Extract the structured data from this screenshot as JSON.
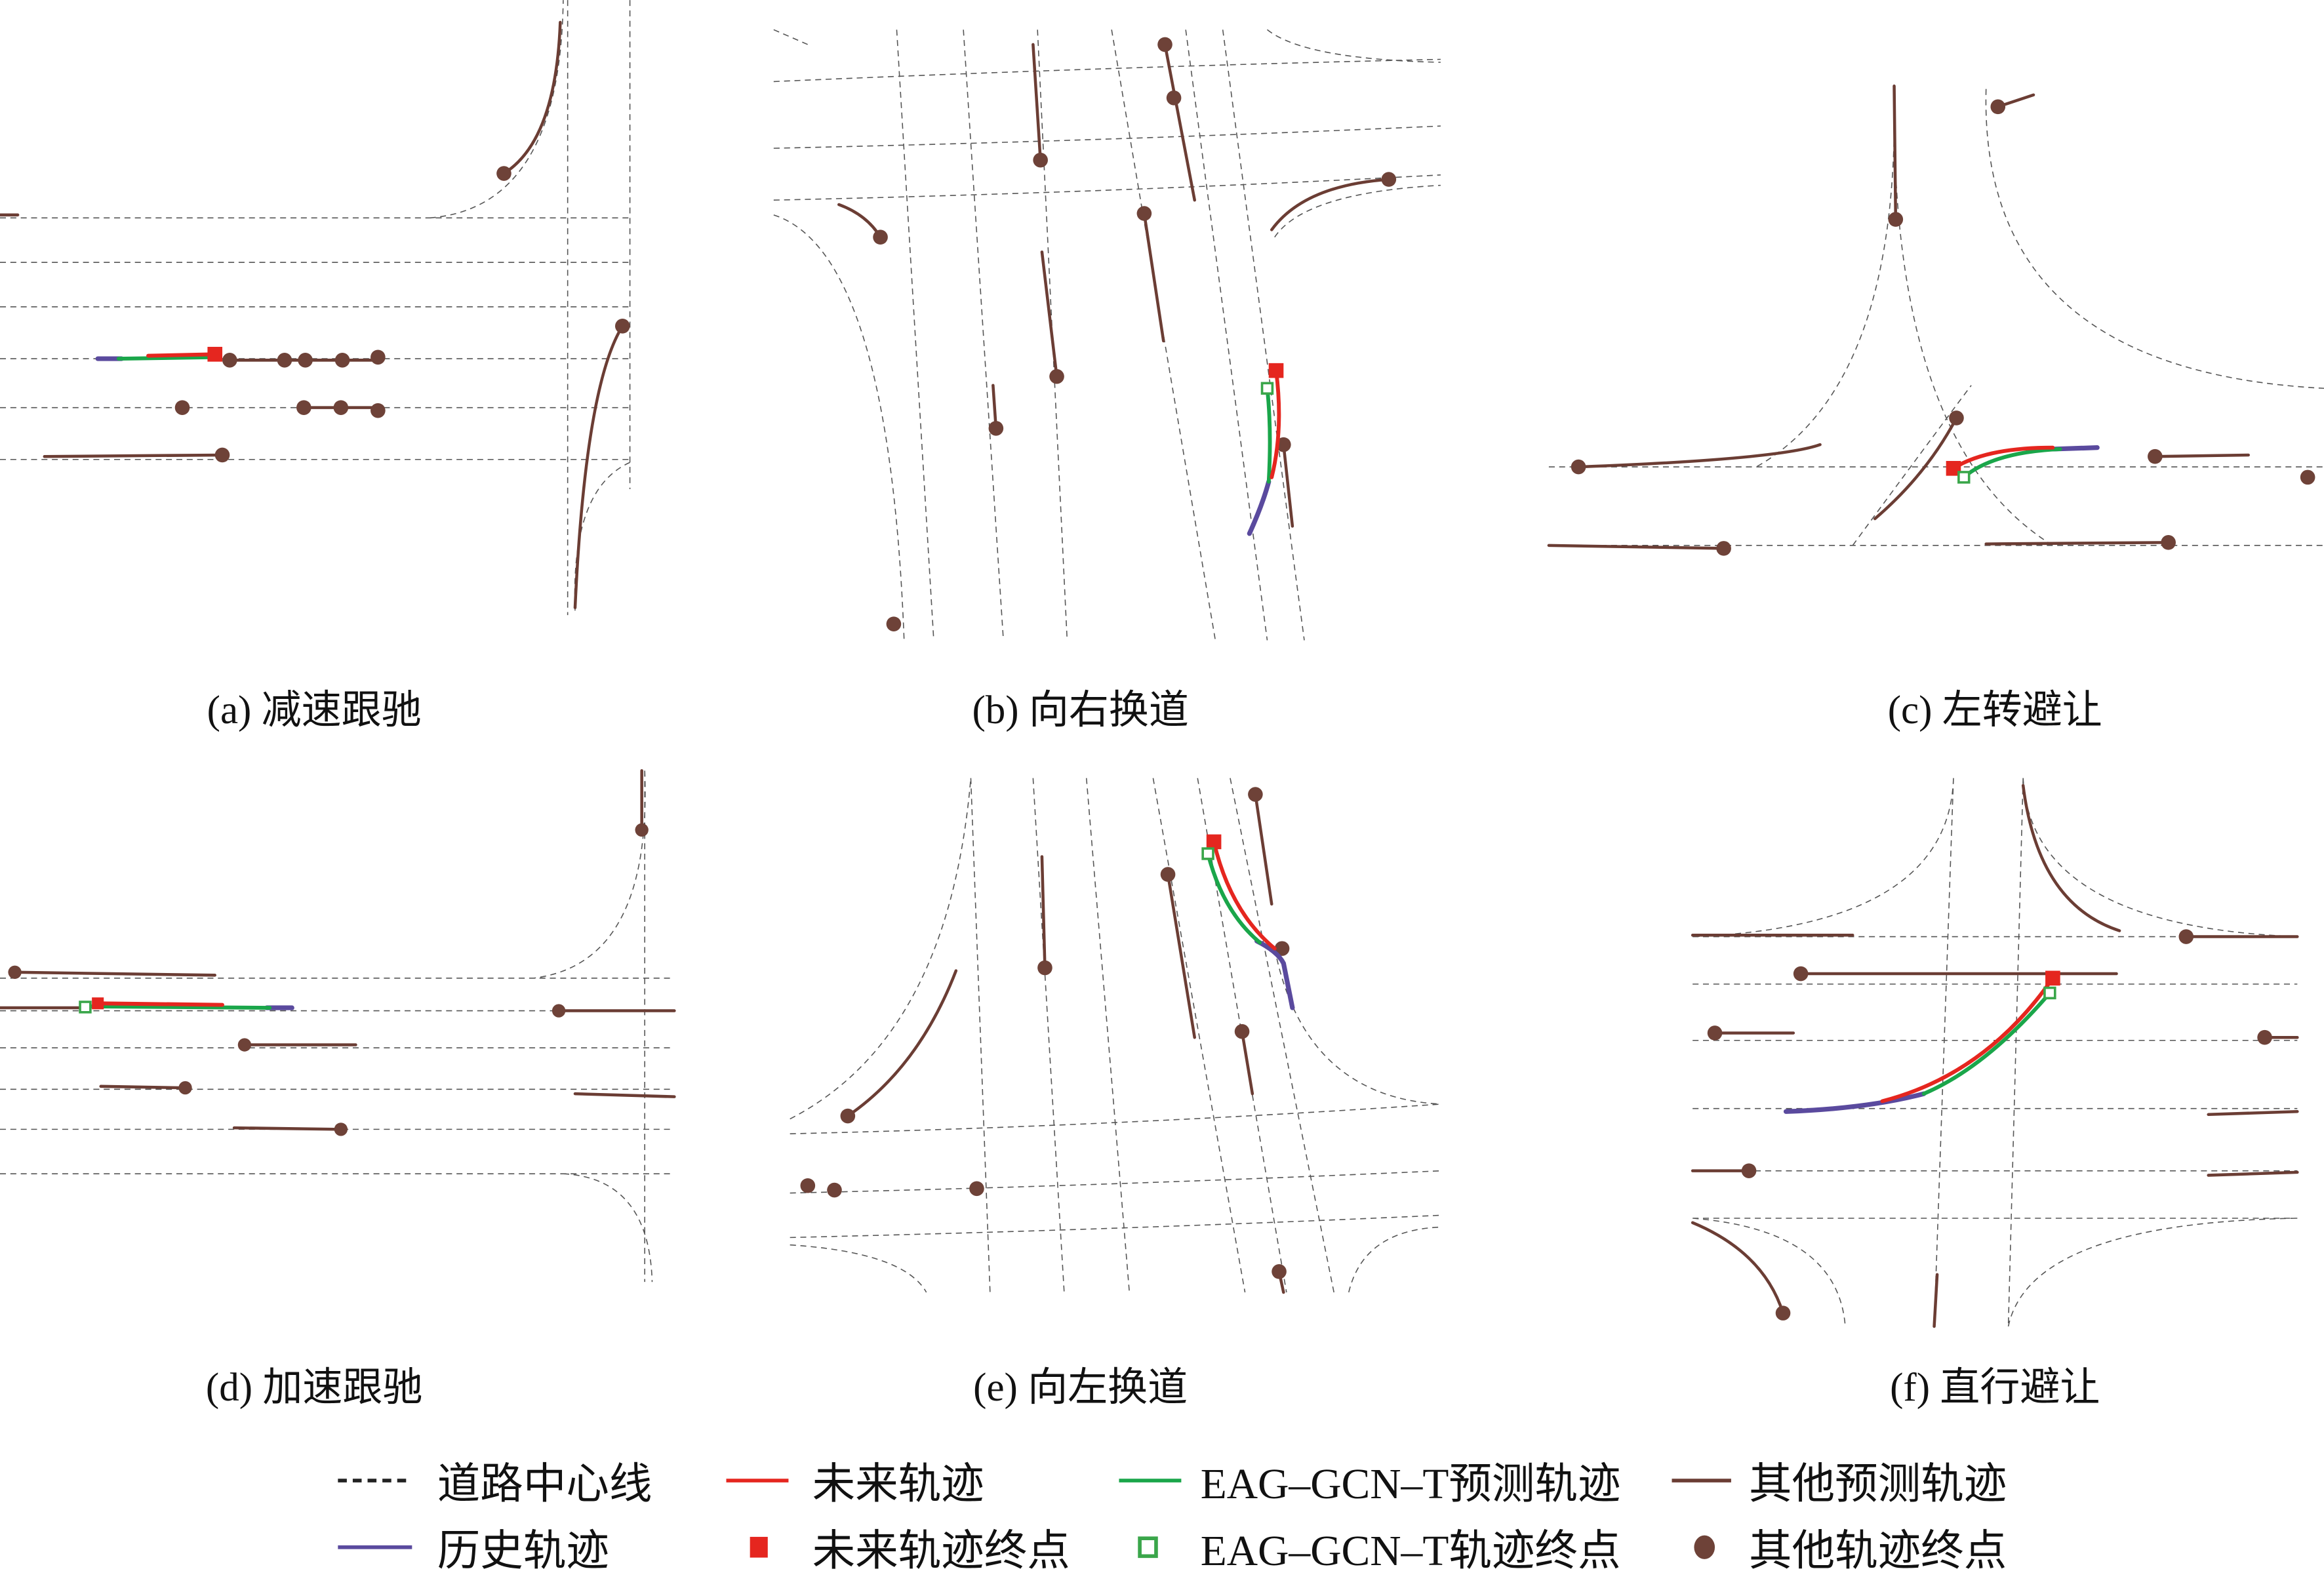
{
  "colors": {
    "future": "#e5261f",
    "predicted": "#1aa64a",
    "history": "#5a4a9e",
    "other": "#6b3d34",
    "road": "#555555"
  },
  "panels": [
    {
      "caption": "(a) 减速跟驰"
    },
    {
      "caption": "(b) 向右换道"
    },
    {
      "caption": "(c) 左转避让"
    },
    {
      "caption": "(d) 加速跟驰"
    },
    {
      "caption": "(e) 向左换道"
    },
    {
      "caption": "(f) 直行避让"
    }
  ],
  "legend": [
    {
      "label": "道路中心线",
      "icon": "dashed-line"
    },
    {
      "label": "未来轨迹",
      "icon": "red-line"
    },
    {
      "label": "EAG–GCN–T预测轨迹",
      "icon": "green-line"
    },
    {
      "label": "其他预测轨迹",
      "icon": "brown-line"
    },
    {
      "label": "历史轨迹",
      "icon": "purple-line"
    },
    {
      "label": "未来轨迹终点",
      "icon": "red-square"
    },
    {
      "label": "EAG–GCN–T轨迹终点",
      "icon": "green-hollow-square"
    },
    {
      "label": "其他轨迹终点",
      "icon": "brown-dot"
    }
  ]
}
